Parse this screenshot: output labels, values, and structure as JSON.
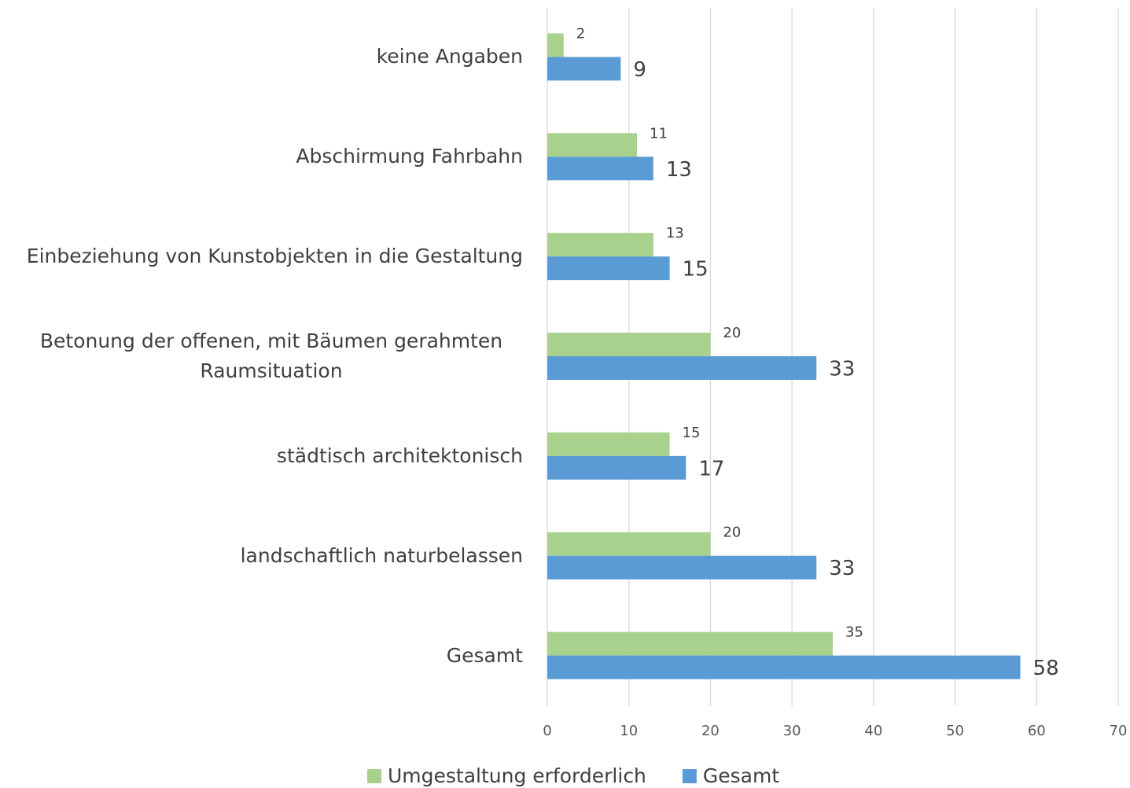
{
  "chart_data": {
    "type": "bar",
    "orientation": "horizontal",
    "categories": [
      "keine Angaben",
      "Abschirmung Fahrbahn",
      "Einbeziehung von Kunstobjekten in die Gestaltung",
      "Betonung der offenen, mit Bäumen gerahmten Raumsituation",
      "städtisch architektonisch",
      "landschaftlich naturbelassen",
      "Gesamt"
    ],
    "series": [
      {
        "name": "Umgestaltung erforderlich",
        "color": "#a9d18e",
        "values": [
          2,
          11,
          13,
          20,
          15,
          20,
          35
        ]
      },
      {
        "name": "Gesamt",
        "color": "#5b9bd5",
        "values": [
          9,
          13,
          15,
          33,
          17,
          33,
          58
        ]
      }
    ],
    "xlim": [
      0,
      70
    ],
    "xticks": [
      0,
      10,
      20,
      30,
      40,
      50,
      60,
      70
    ],
    "grid": true,
    "legend": "bottom"
  }
}
